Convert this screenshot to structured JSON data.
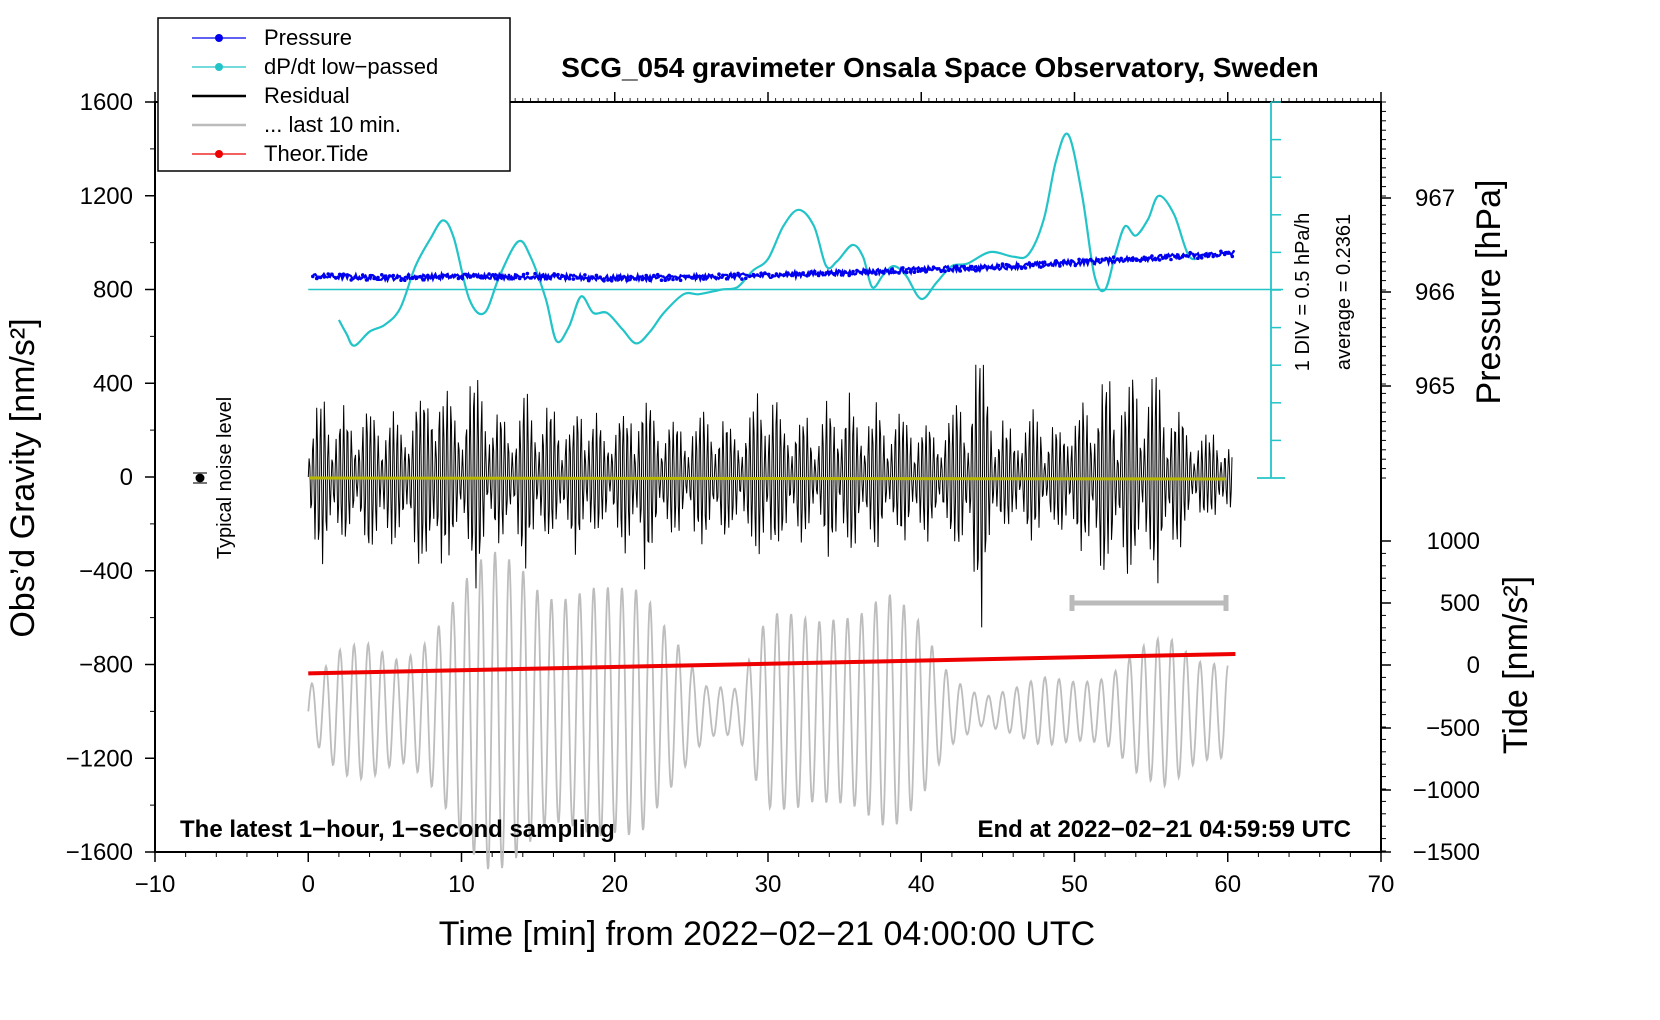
{
  "chart_data": {
    "type": "line",
    "title": "SCG_054 gravimeter Onsala Space Observatory, Sweden",
    "xlabel": "Time [min] from 2022−02−21 04:00:00 UTC",
    "ylabel_left": "Obs’d Gravity [nm/s²]",
    "ylabel_right_top": "Pressure [hPa]",
    "ylabel_right_bottom": "Tide [nm/s²]",
    "xlim": [
      -10,
      70
    ],
    "ylim_left": [
      -1600,
      1600
    ],
    "x_ticks": [
      "−10",
      "0",
      "10",
      "20",
      "30",
      "40",
      "50",
      "60",
      "70"
    ],
    "y_ticks_left": [
      "1600",
      "1200",
      "800",
      "400",
      "0",
      "−400",
      "−800",
      "−1200",
      "−1600"
    ],
    "pressure_ticks": [
      "967",
      "966",
      "965"
    ],
    "tide_ticks": [
      "1000",
      "500",
      "0",
      "−500",
      "−1000",
      "−1500"
    ],
    "legend": [
      {
        "label": "Pressure",
        "color": "#0000ee",
        "style": "line-dot"
      },
      {
        "label": "dP/dt low−passed",
        "color": "#22c4c8",
        "style": "line-dot"
      },
      {
        "label": "Residual",
        "color": "#000000",
        "style": "line"
      },
      {
        "label": "... last 10 min.",
        "color": "#bbbbbb",
        "style": "line"
      },
      {
        "label": "Theor.Tide",
        "color": "#ee0000",
        "style": "line-dot"
      }
    ],
    "annotations": {
      "noise": "Typical noise level",
      "div": "1 DIV = 0.5 hPa/h",
      "average": "average = 0.2361",
      "bottom_left": "The latest 1−hour, 1−second sampling",
      "bottom_right": "End at 2022−02−21 04:59:59 UTC"
    },
    "series": [
      {
        "name": "Pressure",
        "units": "nm/s2 (left-axis equiv.)",
        "x": [
          0,
          5,
          10,
          15,
          20,
          25,
          30,
          35,
          40,
          45,
          50,
          55,
          60.5
        ],
        "values": [
          858,
          850,
          858,
          855,
          848,
          852,
          860,
          872,
          885,
          895,
          915,
          935,
          955
        ]
      },
      {
        "name": "dP/dt low-passed",
        "units": "nm/s2 (left-axis equiv.)",
        "x": [
          2,
          2.5,
          3,
          4,
          5,
          6,
          7,
          8,
          8.8,
          9.5,
          10.5,
          11.5,
          12.5,
          13.7,
          14.5,
          15.5,
          16.2,
          17,
          17.8,
          18.6,
          19.5,
          20.5,
          21.4,
          22.3,
          23.2,
          24.5,
          25.5,
          27,
          28,
          29,
          30,
          31,
          32,
          33,
          33.8,
          34.5,
          35.5,
          36.2,
          36.8,
          37.5,
          38.2,
          39,
          40,
          41,
          42,
          43,
          44.5,
          46,
          47,
          48,
          48.8,
          49.6,
          50.5,
          51.3,
          52,
          52.7,
          53.3,
          54,
          54.8,
          55.5,
          56.5,
          57.5,
          58.5
        ],
        "values": [
          670,
          610,
          560,
          620,
          650,
          720,
          900,
          1020,
          1095,
          1020,
          760,
          700,
          860,
          1005,
          940,
          760,
          580,
          640,
          770,
          700,
          700,
          630,
          570,
          620,
          700,
          780,
          780,
          800,
          810,
          880,
          930,
          1070,
          1140,
          1070,
          900,
          920,
          990,
          940,
          810,
          860,
          900,
          860,
          760,
          830,
          900,
          910,
          960,
          940,
          950,
          1100,
          1350,
          1460,
          1200,
          860,
          800,
          960,
          1070,
          1030,
          1100,
          1200,
          1120,
          940,
          950
        ]
      },
      {
        "name": "Residual",
        "units": "nm/s2",
        "x_range": [
          0,
          60.3
        ],
        "envelope": [
          [
            0,
            300
          ],
          [
            1,
            420
          ],
          [
            2,
            320
          ],
          [
            3,
            340
          ],
          [
            4,
            380
          ],
          [
            5,
            340
          ],
          [
            6,
            300
          ],
          [
            7,
            420
          ],
          [
            7.8,
            480
          ],
          [
            8.4,
            640
          ],
          [
            9,
            430
          ],
          [
            10,
            360
          ],
          [
            11,
            560
          ],
          [
            12,
            340
          ],
          [
            13,
            280
          ],
          [
            14,
            420
          ],
          [
            15,
            380
          ],
          [
            16,
            340
          ],
          [
            17,
            300
          ],
          [
            18,
            390
          ],
          [
            19,
            260
          ],
          [
            20,
            320
          ],
          [
            21,
            410
          ],
          [
            22,
            440
          ],
          [
            23,
            330
          ],
          [
            24,
            270
          ],
          [
            25,
            300
          ],
          [
            26,
            330
          ],
          [
            27,
            340
          ],
          [
            28,
            280
          ],
          [
            29,
            340
          ],
          [
            29.8,
            500
          ],
          [
            30.5,
            410
          ],
          [
            31,
            300
          ],
          [
            32,
            320
          ],
          [
            33,
            240
          ],
          [
            34,
            380
          ],
          [
            35,
            420
          ],
          [
            36,
            300
          ],
          [
            37,
            360
          ],
          [
            38,
            280
          ],
          [
            39,
            380
          ],
          [
            40,
            300
          ],
          [
            41,
            290
          ],
          [
            42,
            340
          ],
          [
            43.2,
            500
          ],
          [
            43.9,
            720
          ],
          [
            44.5,
            420
          ],
          [
            45,
            300
          ],
          [
            46,
            230
          ],
          [
            47,
            320
          ],
          [
            48,
            290
          ],
          [
            49,
            280
          ],
          [
            50,
            340
          ],
          [
            51,
            380
          ],
          [
            52,
            520
          ],
          [
            52.8,
            400
          ],
          [
            53.6,
            560
          ],
          [
            54.5,
            420
          ],
          [
            55.5,
            520
          ],
          [
            56.5,
            380
          ],
          [
            57.5,
            260
          ],
          [
            58.5,
            200
          ],
          [
            59.5,
            260
          ],
          [
            60.3,
            140
          ]
        ]
      },
      {
        "name": "... last 10 min.",
        "units": "nm/s2",
        "x_range": [
          0,
          60
        ],
        "envelope": [
          [
            0,
            120
          ],
          [
            2,
            260
          ],
          [
            4,
            320
          ],
          [
            6,
            300
          ],
          [
            8,
            420
          ],
          [
            10,
            560
          ],
          [
            12,
            700
          ],
          [
            14,
            760
          ],
          [
            16,
            680
          ],
          [
            18,
            600
          ],
          [
            20,
            520
          ],
          [
            22,
            560
          ],
          [
            24,
            420
          ],
          [
            26,
            140
          ],
          [
            28,
            100
          ],
          [
            30,
            420
          ],
          [
            32,
            520
          ],
          [
            34,
            560
          ],
          [
            36,
            480
          ],
          [
            38,
            500
          ],
          [
            40,
            420
          ],
          [
            42,
            200
          ],
          [
            44,
            80
          ],
          [
            46,
            100
          ],
          [
            48,
            150
          ],
          [
            50,
            160
          ],
          [
            52,
            200
          ],
          [
            54,
            300
          ],
          [
            56,
            320
          ],
          [
            58,
            240
          ],
          [
            60,
            280
          ]
        ]
      },
      {
        "name": "Theor.Tide",
        "units": "nm/s2 (left-axis equiv.)",
        "x": [
          0,
          60.5
        ],
        "values": [
          -838,
          -755
        ]
      }
    ],
    "noise_level": {
      "x": -7,
      "y": 0,
      "err": 20
    },
    "scale_bar": {
      "x": [
        50,
        60
      ],
      "y": -530
    }
  }
}
